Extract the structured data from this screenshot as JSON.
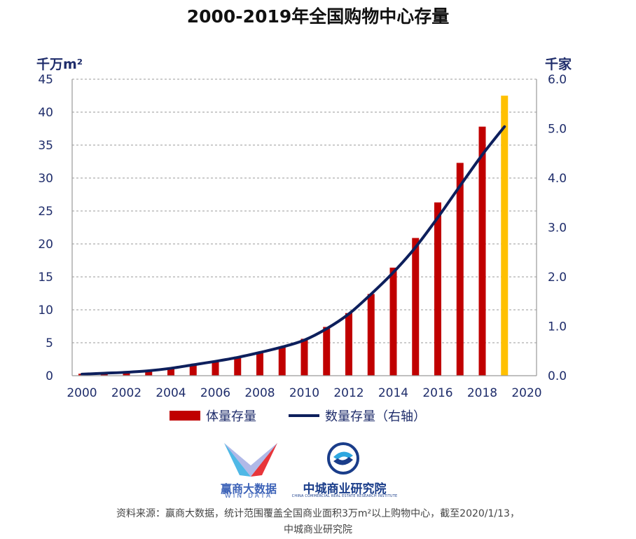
{
  "title": "2000-2019年全国购物中心存量",
  "chart_data": {
    "type": "bar",
    "title": "2000-2019年全国购物中心存量",
    "x": [
      2000,
      2001,
      2002,
      2003,
      2004,
      2005,
      2006,
      2007,
      2008,
      2009,
      2010,
      2011,
      2012,
      2013,
      2014,
      2015,
      2016,
      2017,
      2018,
      2019
    ],
    "x_ticks": [
      "2000",
      "2002",
      "2004",
      "2006",
      "2008",
      "2010",
      "2012",
      "2014",
      "2016",
      "2018",
      "2020"
    ],
    "xlim": [
      2000,
      2020
    ],
    "left_axis": {
      "unit": "千万m²",
      "ylim": [
        0,
        45
      ],
      "ticks": [
        "0",
        "5",
        "10",
        "15",
        "20",
        "25",
        "30",
        "35",
        "40",
        "45"
      ]
    },
    "right_axis": {
      "unit": "千家",
      "ylim": [
        0,
        6
      ],
      "ticks": [
        "0.0",
        "1.0",
        "2.0",
        "3.0",
        "4.0",
        "5.0",
        "6.0"
      ]
    },
    "series": [
      {
        "name": "体量存量",
        "kind": "bar",
        "axis": "left",
        "color": "#c00000",
        "highlight_color": "#ffc000",
        "values": [
          0.3,
          0.5,
          0.7,
          0.9,
          1.2,
          1.6,
          2.1,
          2.7,
          3.4,
          4.3,
          5.6,
          7.4,
          9.5,
          12.4,
          16.4,
          20.9,
          26.3,
          32.3,
          37.8,
          42.5
        ],
        "highlighted_index": 19
      },
      {
        "name": "数量存量（右轴）",
        "kind": "line",
        "axis": "right",
        "color": "#0d1f5c",
        "values": [
          0.03,
          0.05,
          0.07,
          0.1,
          0.15,
          0.22,
          0.29,
          0.37,
          0.47,
          0.58,
          0.72,
          0.95,
          1.25,
          1.65,
          2.09,
          2.6,
          3.2,
          3.84,
          4.47,
          5.04
        ]
      }
    ],
    "grid": true,
    "legend_position": "bottom"
  },
  "legend": {
    "bar_label": "体量存量",
    "line_label": "数量存量（右轴）"
  },
  "logos": {
    "windata_name": "赢商大数据",
    "windata_sub": "WIN DATA",
    "ccreri_name": "中城商业研究院",
    "ccreri_sub": "CHINA COMMERCIAL REAL ESTATE RESEARCH INSTITUTE"
  },
  "source": {
    "line1": "资料来源：赢商大数据，统计范围覆盖全国商业面积3万m²以上购物中心，截至2020/1/13，",
    "line2": "中城商业研究院"
  }
}
